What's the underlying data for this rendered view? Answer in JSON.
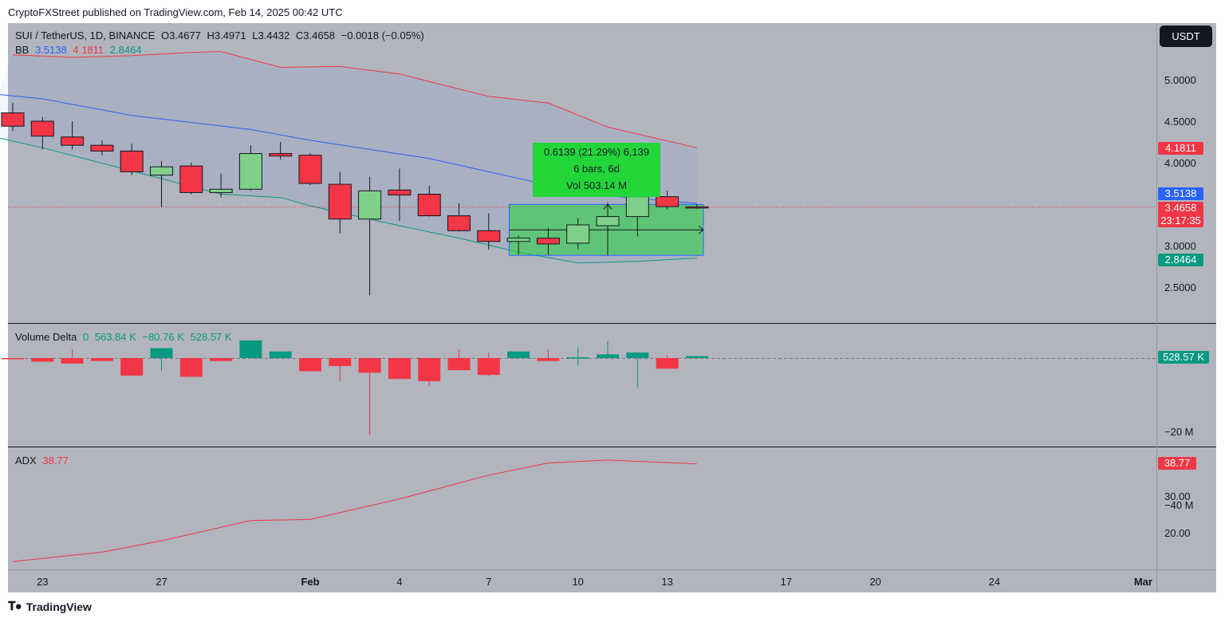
{
  "header": {
    "publisher": "CryptoFXStreet published on TradingView.com, Feb 14, 2025 00:42 UTC"
  },
  "footer": {
    "brand": "TradingView",
    "logo_icon": "tradingview-logo-icon"
  },
  "currency_button": "USDT",
  "main_legend": {
    "symbol": "SUI / TetherUS, 1D, BINANCE",
    "open": "O3.4677",
    "high": "H3.4971",
    "low": "L3.4432",
    "close": "C3.4658",
    "change": "−0.0018 (−0.05%)"
  },
  "bb_legend": {
    "label": "BB",
    "basis": "3.5138",
    "upper": "4.1811",
    "lower": "2.8464"
  },
  "volume_legend": {
    "label": "Volume Delta",
    "v0": "0",
    "v1": "563.84 K",
    "v2": "−80.76 K",
    "v3": "528.57 K"
  },
  "adx_legend": {
    "label": "ADX",
    "value": "38.77"
  },
  "measure": {
    "line1": "0.6139 (21.29%) 6,139",
    "line2": "6 bars, 6d",
    "line3": "Vol 503.14 M"
  },
  "price_tags": {
    "upper": "4.1811",
    "basis": "3.5138",
    "last": "3.4658",
    "countdown": "23:17:35",
    "lower": "2.8464",
    "volume": "528.57 K",
    "adx": "38.77"
  },
  "colors": {
    "up": "#7fd18a",
    "down": "#f23645",
    "bb_upper": "#f23645",
    "bb_basis": "#2962ff",
    "bb_lower": "#089981",
    "delta_up": "#089981",
    "delta_down": "#f23645",
    "adx": "#f23645",
    "measure": "#22d63a",
    "pane_bg": "#b2b5be"
  },
  "chart_data": {
    "type": "candlestick",
    "price_axis_ticks": [
      "5.0000",
      "4.5000",
      "4.0000",
      "3.0000",
      "2.5000"
    ],
    "volume_axis_ticks": [
      "−20 M",
      "−40 M"
    ],
    "adx_axis_ticks": [
      "30.00",
      "20.00"
    ],
    "x_axis_labels": [
      {
        "label": "23",
        "date": "2025-01-23"
      },
      {
        "label": "27",
        "date": "2025-01-27"
      },
      {
        "label": "Feb",
        "date": "2025-02-01"
      },
      {
        "label": "4",
        "date": "2025-02-04"
      },
      {
        "label": "7",
        "date": "2025-02-07"
      },
      {
        "label": "10",
        "date": "2025-02-10"
      },
      {
        "label": "13",
        "date": "2025-02-13"
      },
      {
        "label": "17",
        "date": "2025-02-17"
      },
      {
        "label": "20",
        "date": "2025-02-20"
      },
      {
        "label": "24",
        "date": "2025-02-24"
      },
      {
        "label": "Mar",
        "date": "2025-03-01"
      }
    ],
    "candles": [
      {
        "date": "2025-01-22",
        "o": 4.6,
        "h": 4.72,
        "l": 4.38,
        "c": 4.44
      },
      {
        "date": "2025-01-23",
        "o": 4.5,
        "h": 4.55,
        "l": 4.16,
        "c": 4.32
      },
      {
        "date": "2025-01-24",
        "o": 4.31,
        "h": 4.5,
        "l": 4.16,
        "c": 4.21
      },
      {
        "date": "2025-01-25",
        "o": 4.21,
        "h": 4.27,
        "l": 4.09,
        "c": 4.14
      },
      {
        "date": "2025-01-26",
        "o": 4.14,
        "h": 4.23,
        "l": 3.85,
        "c": 3.89
      },
      {
        "date": "2025-01-27",
        "o": 3.85,
        "h": 4.02,
        "l": 3.46,
        "c": 3.95
      },
      {
        "date": "2025-01-28",
        "o": 3.96,
        "h": 4.0,
        "l": 3.62,
        "c": 3.64
      },
      {
        "date": "2025-01-29",
        "o": 3.64,
        "h": 3.87,
        "l": 3.58,
        "c": 3.68
      },
      {
        "date": "2025-01-30",
        "o": 3.68,
        "h": 4.21,
        "l": 3.66,
        "c": 4.11
      },
      {
        "date": "2025-01-31",
        "o": 4.11,
        "h": 4.25,
        "l": 4.04,
        "c": 4.08
      },
      {
        "date": "2025-02-01",
        "o": 4.09,
        "h": 4.11,
        "l": 3.73,
        "c": 3.75
      },
      {
        "date": "2025-02-02",
        "o": 3.74,
        "h": 3.89,
        "l": 3.15,
        "c": 3.32
      },
      {
        "date": "2025-02-03",
        "o": 3.32,
        "h": 3.83,
        "l": 2.4,
        "c": 3.66
      },
      {
        "date": "2025-02-04",
        "o": 3.67,
        "h": 3.93,
        "l": 3.3,
        "c": 3.61
      },
      {
        "date": "2025-02-05",
        "o": 3.62,
        "h": 3.72,
        "l": 3.35,
        "c": 3.36
      },
      {
        "date": "2025-02-06",
        "o": 3.36,
        "h": 3.51,
        "l": 3.17,
        "c": 3.18
      },
      {
        "date": "2025-02-07",
        "o": 3.18,
        "h": 3.39,
        "l": 2.95,
        "c": 3.05
      },
      {
        "date": "2025-02-08",
        "o": 3.05,
        "h": 3.12,
        "l": 2.89,
        "c": 3.09
      },
      {
        "date": "2025-02-09",
        "o": 3.09,
        "h": 3.21,
        "l": 2.89,
        "c": 3.02
      },
      {
        "date": "2025-02-10",
        "o": 3.03,
        "h": 3.33,
        "l": 2.96,
        "c": 3.25
      },
      {
        "date": "2025-02-11",
        "o": 3.24,
        "h": 3.52,
        "l": 2.89,
        "c": 3.35
      },
      {
        "date": "2025-02-12",
        "o": 3.35,
        "h": 3.62,
        "l": 3.11,
        "c": 3.59
      },
      {
        "date": "2025-02-13",
        "o": 3.59,
        "h": 3.66,
        "l": 3.44,
        "c": 3.47
      },
      {
        "date": "2025-02-14",
        "o": 3.4677,
        "h": 3.4971,
        "l": 3.4432,
        "c": 3.4658
      }
    ],
    "bollinger": {
      "upper": [
        {
          "date": "2025-01-22",
          "v": 5.3
        },
        {
          "date": "2025-01-24",
          "v": 5.27
        },
        {
          "date": "2025-01-26",
          "v": 5.29
        },
        {
          "date": "2025-01-28",
          "v": 5.33
        },
        {
          "date": "2025-01-29",
          "v": 5.34
        },
        {
          "date": "2025-01-31",
          "v": 5.15
        },
        {
          "date": "2025-02-02",
          "v": 5.16
        },
        {
          "date": "2025-02-04",
          "v": 5.07
        },
        {
          "date": "2025-02-05",
          "v": 4.98
        },
        {
          "date": "2025-02-07",
          "v": 4.8
        },
        {
          "date": "2025-02-09",
          "v": 4.72
        },
        {
          "date": "2025-02-11",
          "v": 4.43
        },
        {
          "date": "2025-02-14",
          "v": 4.18
        }
      ],
      "basis": [
        {
          "date": "2025-01-21",
          "v": 4.84
        },
        {
          "date": "2025-01-23",
          "v": 4.77
        },
        {
          "date": "2025-01-26",
          "v": 4.57
        },
        {
          "date": "2025-01-30",
          "v": 4.4
        },
        {
          "date": "2025-02-01",
          "v": 4.27
        },
        {
          "date": "2025-02-03",
          "v": 4.16
        },
        {
          "date": "2025-02-05",
          "v": 4.05
        },
        {
          "date": "2025-02-07",
          "v": 3.89
        },
        {
          "date": "2025-02-09",
          "v": 3.73
        },
        {
          "date": "2025-02-11",
          "v": 3.6
        },
        {
          "date": "2025-02-14",
          "v": 3.51
        }
      ],
      "lower": [
        {
          "date": "2025-01-21",
          "v": 4.34
        },
        {
          "date": "2025-01-23",
          "v": 4.18
        },
        {
          "date": "2025-01-26",
          "v": 3.9
        },
        {
          "date": "2025-01-29",
          "v": 3.62
        },
        {
          "date": "2025-01-31",
          "v": 3.58
        },
        {
          "date": "2025-02-01",
          "v": 3.48
        },
        {
          "date": "2025-02-04",
          "v": 3.24
        },
        {
          "date": "2025-02-06",
          "v": 3.09
        },
        {
          "date": "2025-02-08",
          "v": 2.92
        },
        {
          "date": "2025-02-10",
          "v": 2.79
        },
        {
          "date": "2025-02-12",
          "v": 2.81
        },
        {
          "date": "2025-02-14",
          "v": 2.85
        }
      ]
    },
    "volume_delta_millions": [
      {
        "date": "2025-01-22",
        "v": -0.3
      },
      {
        "date": "2025-01-23",
        "v": -1.0
      },
      {
        "date": "2025-01-24",
        "v": -1.5
      },
      {
        "date": "2025-01-25",
        "v": -0.8
      },
      {
        "date": "2025-01-26",
        "v": -4.8
      },
      {
        "date": "2025-01-27",
        "v": 2.7
      },
      {
        "date": "2025-01-28",
        "v": -5.1
      },
      {
        "date": "2025-01-29",
        "v": -0.8
      },
      {
        "date": "2025-01-30",
        "v": 4.8
      },
      {
        "date": "2025-01-31",
        "v": 1.8
      },
      {
        "date": "2025-02-01",
        "v": -3.6
      },
      {
        "date": "2025-02-02",
        "v": -2.2
      },
      {
        "date": "2025-02-03",
        "v": -4.0
      },
      {
        "date": "2025-02-04",
        "v": -5.7
      },
      {
        "date": "2025-02-05",
        "v": -6.3
      },
      {
        "date": "2025-02-06",
        "v": -3.3
      },
      {
        "date": "2025-02-07",
        "v": -4.6
      },
      {
        "date": "2025-02-08",
        "v": 1.8
      },
      {
        "date": "2025-02-09",
        "v": -0.8
      },
      {
        "date": "2025-02-10",
        "v": 0.2
      },
      {
        "date": "2025-02-11",
        "v": 1.0
      },
      {
        "date": "2025-02-12",
        "v": 1.5
      },
      {
        "date": "2025-02-13",
        "v": -2.9
      },
      {
        "date": "2025-02-14",
        "v": 0.53
      }
    ],
    "adx": [
      {
        "date": "2025-01-22",
        "v": 12.1
      },
      {
        "date": "2025-01-25",
        "v": 14.7
      },
      {
        "date": "2025-01-27",
        "v": 17.8
      },
      {
        "date": "2025-01-30",
        "v": 23.3
      },
      {
        "date": "2025-02-01",
        "v": 23.6
      },
      {
        "date": "2025-02-04",
        "v": 29.2
      },
      {
        "date": "2025-02-07",
        "v": 35.7
      },
      {
        "date": "2025-02-09",
        "v": 39.0
      },
      {
        "date": "2025-02-11",
        "v": 39.8
      },
      {
        "date": "2025-02-14",
        "v": 38.77
      }
    ],
    "measure_range": {
      "from": "2025-02-08",
      "to": "2025-02-14",
      "low": 2.8832,
      "high": 3.4971
    }
  }
}
